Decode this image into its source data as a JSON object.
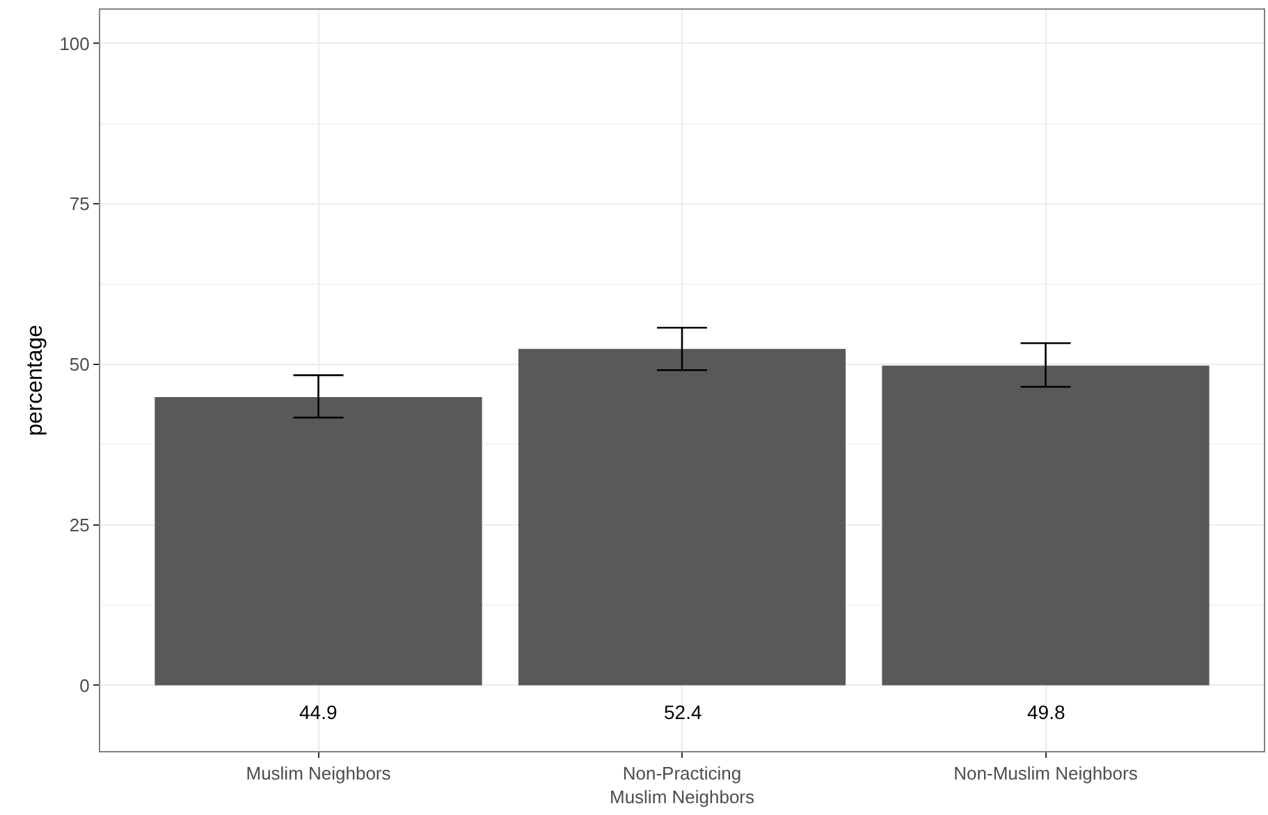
{
  "chart_data": {
    "type": "bar",
    "ylabel": "percentage",
    "categories": [
      "Muslim Neighbors",
      "Non-Practicing\nMuslim Neighbors",
      "Non-Muslim Neighbors"
    ],
    "values": [
      44.9,
      52.4,
      49.8
    ],
    "color": "#595959",
    "errors": [
      [
        41.7,
        48.3
      ],
      [
        49.1,
        55.7
      ],
      [
        46.5,
        53.3
      ]
    ],
    "data_labels": true,
    "ylim": [
      -10.25,
      105.25
    ],
    "yticks": [
      0,
      25,
      50,
      75,
      100
    ],
    "grid": true
  }
}
